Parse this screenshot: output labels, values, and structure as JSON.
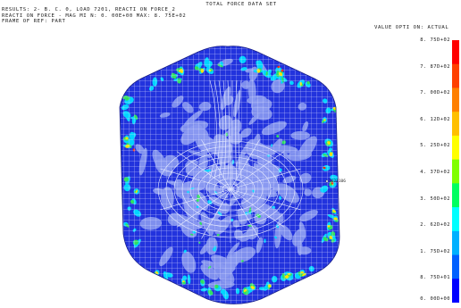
{
  "header": {
    "title": "TOTAL FORCE DATA SET",
    "results_line": "RESULTS: 2- B. C. 0, LOAD 7201, REACTI ON FORCE_2",
    "reaction_line": "REACTI ON FORCE - MAG MI N: 0. 00E+00 MAX: 8. 75E+02",
    "frame_line": "FRAME OF REF: PART",
    "value_option": "VALUE OPTI ON: ACTUAL"
  },
  "legend": {
    "labels": [
      "8. 75D+02",
      "7. 87D+02",
      "7. 00D+02",
      "6. 12D+02",
      "5. 25D+02",
      "4. 37D+02",
      "3. 50D+02",
      "2. 62D+02",
      "1. 75D+02",
      "8. 75D+01",
      "0. 00D+00"
    ],
    "colors": [
      "#ff0000",
      "#ff4000",
      "#ff8000",
      "#ffbf00",
      "#ffff00",
      "#80ff00",
      "#00ff60",
      "#00ffff",
      "#00b0ff",
      "#0060ff",
      "#0000ff"
    ]
  },
  "model": {
    "node_label": "1621106",
    "colors": {
      "mesh_base": "#2233dd",
      "mesh_line": "#dfe3ff",
      "low_stress": "#8a99f0",
      "cyan": "#00d4ff",
      "green": "#30e060",
      "yellow": "#ffe000",
      "red": "#ff2000"
    }
  }
}
